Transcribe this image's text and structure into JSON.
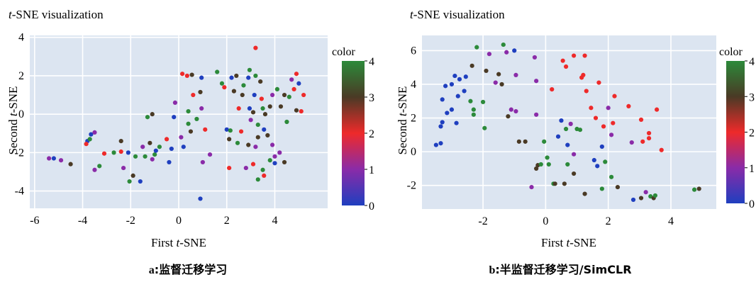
{
  "chart_data": [
    {
      "type": "scatter",
      "title": "t-SNE visualization",
      "title_italic": "t",
      "title_rest": "-SNE visualization",
      "xlabel": "First t-SNE",
      "xlabel_pre": "First ",
      "xlabel_italic": "t",
      "xlabel_post": "-SNE",
      "ylabel": "Second t-SNE",
      "ylabel_pre": "Second ",
      "ylabel_italic": "t",
      "ylabel_post": "-SNE",
      "xlim": [
        -6.2,
        6.2
      ],
      "ylim": [
        -4.9,
        4.1
      ],
      "xticks": [
        -6,
        -4,
        -2,
        0,
        2,
        4
      ],
      "yticks": [
        -4,
        -2,
        0,
        2,
        4
      ],
      "colorbar": {
        "label": "color",
        "ticks": [
          0,
          1,
          2,
          3,
          4
        ],
        "range": [
          0,
          4
        ]
      },
      "grid": true,
      "caption_letter": "a",
      "caption_text": ":监督迁移学习",
      "points": [
        {
          "x": -5.4,
          "y": -2.3,
          "c": 1
        },
        {
          "x": -5.2,
          "y": -2.3,
          "c": 0
        },
        {
          "x": -4.9,
          "y": -2.4,
          "c": 1
        },
        {
          "x": -4.5,
          "y": -2.6,
          "c": 3
        },
        {
          "x": -3.8,
          "y": -1.4,
          "c": 0
        },
        {
          "x": -3.7,
          "y": -1.3,
          "c": 4
        },
        {
          "x": -3.65,
          "y": -1.05,
          "c": 0
        },
        {
          "x": -3.5,
          "y": -0.95,
          "c": 1
        },
        {
          "x": -3.85,
          "y": -1.55,
          "c": 2
        },
        {
          "x": -3.5,
          "y": -2.9,
          "c": 1
        },
        {
          "x": -3.3,
          "y": -2.7,
          "c": 4
        },
        {
          "x": -3.1,
          "y": -2.05,
          "c": 2
        },
        {
          "x": -2.7,
          "y": -2.0,
          "c": 4
        },
        {
          "x": -2.4,
          "y": -1.95,
          "c": 2
        },
        {
          "x": -2.4,
          "y": -1.4,
          "c": 3
        },
        {
          "x": -2.3,
          "y": -2.8,
          "c": 1
        },
        {
          "x": -2.1,
          "y": -2.0,
          "c": 0
        },
        {
          "x": -2.05,
          "y": -3.5,
          "c": 4
        },
        {
          "x": -1.9,
          "y": -3.2,
          "c": 3
        },
        {
          "x": -1.8,
          "y": -2.2,
          "c": 4
        },
        {
          "x": -1.6,
          "y": -3.5,
          "c": 0
        },
        {
          "x": -1.5,
          "y": -1.7,
          "c": 1
        },
        {
          "x": -1.4,
          "y": -2.2,
          "c": 4
        },
        {
          "x": -1.3,
          "y": -0.15,
          "c": 4
        },
        {
          "x": -1.1,
          "y": 0.0,
          "c": 3
        },
        {
          "x": -1.2,
          "y": -1.5,
          "c": 3
        },
        {
          "x": -1.0,
          "y": -2.1,
          "c": 4
        },
        {
          "x": -0.95,
          "y": -1.9,
          "c": 0
        },
        {
          "x": -1.1,
          "y": -2.35,
          "c": 1
        },
        {
          "x": -0.8,
          "y": -1.7,
          "c": 4
        },
        {
          "x": -0.5,
          "y": -1.3,
          "c": 2
        },
        {
          "x": -0.3,
          "y": -1.8,
          "c": 0
        },
        {
          "x": -0.4,
          "y": -2.5,
          "c": 0
        },
        {
          "x": -0.2,
          "y": -0.15,
          "c": 0
        },
        {
          "x": -0.15,
          "y": 0.6,
          "c": 1
        },
        {
          "x": 0.1,
          "y": -1.2,
          "c": 1
        },
        {
          "x": 0.2,
          "y": -1.7,
          "c": 0
        },
        {
          "x": 0.15,
          "y": 2.1,
          "c": 2
        },
        {
          "x": 0.35,
          "y": 2.0,
          "c": 2
        },
        {
          "x": 0.4,
          "y": -0.5,
          "c": 4
        },
        {
          "x": 0.4,
          "y": 0.15,
          "c": 4
        },
        {
          "x": 0.5,
          "y": -0.9,
          "c": 3
        },
        {
          "x": 0.6,
          "y": 1.0,
          "c": 2
        },
        {
          "x": 0.55,
          "y": 2.05,
          "c": 3
        },
        {
          "x": 0.75,
          "y": -0.25,
          "c": 4
        },
        {
          "x": 0.9,
          "y": 1.15,
          "c": 3
        },
        {
          "x": 0.95,
          "y": 0.3,
          "c": 1
        },
        {
          "x": 0.95,
          "y": 1.9,
          "c": 0
        },
        {
          "x": 1.1,
          "y": -0.8,
          "c": 2
        },
        {
          "x": 1.3,
          "y": -2.1,
          "c": 1
        },
        {
          "x": 0.9,
          "y": -4.4,
          "c": 0
        },
        {
          "x": 1.0,
          "y": -2.5,
          "c": 1
        },
        {
          "x": 1.6,
          "y": 2.2,
          "c": 4
        },
        {
          "x": 1.8,
          "y": 1.6,
          "c": 4
        },
        {
          "x": 1.9,
          "y": 1.4,
          "c": 2
        },
        {
          "x": 2.0,
          "y": -0.8,
          "c": 0
        },
        {
          "x": 2.1,
          "y": -1.3,
          "c": 3
        },
        {
          "x": 2.1,
          "y": -2.8,
          "c": 2
        },
        {
          "x": 2.15,
          "y": -0.85,
          "c": 4
        },
        {
          "x": 2.2,
          "y": 1.9,
          "c": 0
        },
        {
          "x": 2.3,
          "y": 1.2,
          "c": 3
        },
        {
          "x": 2.4,
          "y": 2.0,
          "c": 3
        },
        {
          "x": 2.45,
          "y": -1.5,
          "c": 4
        },
        {
          "x": 2.5,
          "y": 0.3,
          "c": 2
        },
        {
          "x": 2.6,
          "y": -0.9,
          "c": 2
        },
        {
          "x": 2.65,
          "y": 1.0,
          "c": 3
        },
        {
          "x": 2.7,
          "y": 1.5,
          "c": 4
        },
        {
          "x": 2.8,
          "y": -2.8,
          "c": 1
        },
        {
          "x": 2.9,
          "y": -1.6,
          "c": 3
        },
        {
          "x": 2.9,
          "y": 1.9,
          "c": 0
        },
        {
          "x": 2.95,
          "y": 2.3,
          "c": 4
        },
        {
          "x": 2.95,
          "y": 0.3,
          "c": 0
        },
        {
          "x": 3.0,
          "y": -0.3,
          "c": 1
        },
        {
          "x": 3.1,
          "y": -2.6,
          "c": 2
        },
        {
          "x": 3.1,
          "y": 0.1,
          "c": 3
        },
        {
          "x": 3.15,
          "y": 1.0,
          "c": 0
        },
        {
          "x": 3.2,
          "y": 3.45,
          "c": 2
        },
        {
          "x": 3.2,
          "y": 2.0,
          "c": 4
        },
        {
          "x": 3.2,
          "y": -1.7,
          "c": 1
        },
        {
          "x": 3.3,
          "y": -0.55,
          "c": 4
        },
        {
          "x": 3.3,
          "y": -1.2,
          "c": 3
        },
        {
          "x": 3.3,
          "y": -3.4,
          "c": 4
        },
        {
          "x": 3.4,
          "y": 1.7,
          "c": 3
        },
        {
          "x": 3.45,
          "y": 0.8,
          "c": 2
        },
        {
          "x": 3.5,
          "y": -2.9,
          "c": 4
        },
        {
          "x": 3.5,
          "y": 0.3,
          "c": 4
        },
        {
          "x": 3.55,
          "y": -0.8,
          "c": 0
        },
        {
          "x": 3.6,
          "y": 0.0,
          "c": 3
        },
        {
          "x": 3.55,
          "y": -3.2,
          "c": 2
        },
        {
          "x": 3.7,
          "y": -1.1,
          "c": 3
        },
        {
          "x": 3.8,
          "y": 0.4,
          "c": 3
        },
        {
          "x": 3.8,
          "y": -2.4,
          "c": 4
        },
        {
          "x": 3.9,
          "y": 1.0,
          "c": 1
        },
        {
          "x": 3.9,
          "y": -1.6,
          "c": 1
        },
        {
          "x": 4.0,
          "y": -2.2,
          "c": 1
        },
        {
          "x": 4.0,
          "y": -2.55,
          "c": 0
        },
        {
          "x": 4.1,
          "y": 1.3,
          "c": 4
        },
        {
          "x": 4.2,
          "y": -2.0,
          "c": 1
        },
        {
          "x": 4.25,
          "y": 0.4,
          "c": 3
        },
        {
          "x": 4.4,
          "y": 1.0,
          "c": 3
        },
        {
          "x": 4.4,
          "y": -2.5,
          "c": 3
        },
        {
          "x": 4.5,
          "y": -0.4,
          "c": 4
        },
        {
          "x": 4.6,
          "y": 0.9,
          "c": 4
        },
        {
          "x": 4.7,
          "y": 1.8,
          "c": 1
        },
        {
          "x": 4.8,
          "y": 1.3,
          "c": 2
        },
        {
          "x": 4.9,
          "y": 2.1,
          "c": 2
        },
        {
          "x": 5.0,
          "y": 1.6,
          "c": 0
        },
        {
          "x": 4.9,
          "y": 0.2,
          "c": 3
        },
        {
          "x": 5.1,
          "y": 0.15,
          "c": 2
        },
        {
          "x": 5.2,
          "y": 1.0,
          "c": 2
        }
      ]
    },
    {
      "type": "scatter",
      "title": "t-SNE visualization",
      "title_italic": "t",
      "title_rest": "-SNE visualization",
      "xlabel": "First t-SNE",
      "xlabel_pre": "First ",
      "xlabel_italic": "t",
      "xlabel_post": "-SNE",
      "ylabel": "Second t-SNE",
      "ylabel_pre": "Second ",
      "ylabel_italic": "t",
      "ylabel_post": "-SNE",
      "xlim": [
        -3.95,
        5.45
      ],
      "ylim": [
        -3.4,
        6.9
      ],
      "xticks": [
        -2,
        0,
        2,
        4
      ],
      "yticks": [
        -2,
        0,
        2,
        4,
        6
      ],
      "colorbar": {
        "label": "color",
        "ticks": [
          0,
          1,
          2,
          3,
          4
        ],
        "range": [
          0,
          4
        ]
      },
      "grid": true,
      "caption_letter": "b",
      "caption_text": ":半监督迁移学习/SimCLR",
      "points": [
        {
          "x": -3.5,
          "y": 0.4,
          "c": 0
        },
        {
          "x": -3.35,
          "y": 0.5,
          "c": 0
        },
        {
          "x": -3.35,
          "y": 1.5,
          "c": 0
        },
        {
          "x": -3.3,
          "y": 1.75,
          "c": 0
        },
        {
          "x": -3.3,
          "y": 3.1,
          "c": 0
        },
        {
          "x": -3.15,
          "y": 2.3,
          "c": 0
        },
        {
          "x": -3.2,
          "y": 3.9,
          "c": 0
        },
        {
          "x": -3.0,
          "y": 2.5,
          "c": 0
        },
        {
          "x": -3.0,
          "y": 4.0,
          "c": 0
        },
        {
          "x": -2.9,
          "y": 4.5,
          "c": 0
        },
        {
          "x": -2.85,
          "y": 1.7,
          "c": 0
        },
        {
          "x": -2.8,
          "y": 3.3,
          "c": 0
        },
        {
          "x": -2.75,
          "y": 4.3,
          "c": 0
        },
        {
          "x": -2.6,
          "y": 3.6,
          "c": 0
        },
        {
          "x": -2.55,
          "y": 4.45,
          "c": 0
        },
        {
          "x": -2.4,
          "y": 3.0,
          "c": 4
        },
        {
          "x": -2.3,
          "y": 2.2,
          "c": 4
        },
        {
          "x": -2.3,
          "y": 2.5,
          "c": 4
        },
        {
          "x": -2.35,
          "y": 5.1,
          "c": 3
        },
        {
          "x": -2.2,
          "y": 6.2,
          "c": 4
        },
        {
          "x": -1.95,
          "y": 1.4,
          "c": 4
        },
        {
          "x": -2.0,
          "y": 2.95,
          "c": 4
        },
        {
          "x": -1.9,
          "y": 4.8,
          "c": 3
        },
        {
          "x": -1.8,
          "y": 5.8,
          "c": 1
        },
        {
          "x": -1.6,
          "y": 4.1,
          "c": 1
        },
        {
          "x": -1.5,
          "y": 4.6,
          "c": 3
        },
        {
          "x": -1.35,
          "y": 6.35,
          "c": 4
        },
        {
          "x": -1.4,
          "y": 4.0,
          "c": 3
        },
        {
          "x": -1.2,
          "y": 2.1,
          "c": 3
        },
        {
          "x": -1.25,
          "y": 5.9,
          "c": 1
        },
        {
          "x": -1.1,
          "y": 2.5,
          "c": 1
        },
        {
          "x": -1.0,
          "y": 6.0,
          "c": 0
        },
        {
          "x": -0.95,
          "y": 2.4,
          "c": 1
        },
        {
          "x": -0.95,
          "y": 4.55,
          "c": 1
        },
        {
          "x": -0.85,
          "y": 0.6,
          "c": 3
        },
        {
          "x": -0.65,
          "y": 0.6,
          "c": 3
        },
        {
          "x": -0.45,
          "y": -2.1,
          "c": 1
        },
        {
          "x": -0.35,
          "y": 5.6,
          "c": 1
        },
        {
          "x": -0.3,
          "y": 4.2,
          "c": 1
        },
        {
          "x": -0.3,
          "y": 2.2,
          "c": 1
        },
        {
          "x": -0.25,
          "y": -0.8,
          "c": 3
        },
        {
          "x": -0.3,
          "y": -1.0,
          "c": 3
        },
        {
          "x": -0.15,
          "y": -0.75,
          "c": 4
        },
        {
          "x": -0.05,
          "y": 0.6,
          "c": 4
        },
        {
          "x": 0.05,
          "y": -0.35,
          "c": 4
        },
        {
          "x": 0.1,
          "y": -0.75,
          "c": 4
        },
        {
          "x": 0.2,
          "y": 3.7,
          "c": 2
        },
        {
          "x": 0.25,
          "y": -1.9,
          "c": 4
        },
        {
          "x": 0.3,
          "y": -1.9,
          "c": 3
        },
        {
          "x": 0.4,
          "y": 0.9,
          "c": 0
        },
        {
          "x": 0.5,
          "y": 1.85,
          "c": 0
        },
        {
          "x": 0.55,
          "y": 5.4,
          "c": 2
        },
        {
          "x": 0.6,
          "y": -1.9,
          "c": 3
        },
        {
          "x": 0.65,
          "y": 5.05,
          "c": 2
        },
        {
          "x": 0.65,
          "y": 1.35,
          "c": 4
        },
        {
          "x": 0.7,
          "y": 0.4,
          "c": 0
        },
        {
          "x": 0.7,
          "y": -0.75,
          "c": 4
        },
        {
          "x": 0.8,
          "y": 1.65,
          "c": 1
        },
        {
          "x": 0.9,
          "y": 5.7,
          "c": 2
        },
        {
          "x": 0.9,
          "y": -0.15,
          "c": 1
        },
        {
          "x": 0.9,
          "y": -1.3,
          "c": 3
        },
        {
          "x": 1.0,
          "y": 1.35,
          "c": 4
        },
        {
          "x": 1.1,
          "y": 1.3,
          "c": 4
        },
        {
          "x": 1.15,
          "y": 4.4,
          "c": 2
        },
        {
          "x": 1.2,
          "y": 4.55,
          "c": 2
        },
        {
          "x": 1.25,
          "y": 5.7,
          "c": 2
        },
        {
          "x": 1.3,
          "y": 3.6,
          "c": 2
        },
        {
          "x": 1.25,
          "y": -2.5,
          "c": 3
        },
        {
          "x": 1.45,
          "y": 2.6,
          "c": 2
        },
        {
          "x": 1.55,
          "y": -0.5,
          "c": 0
        },
        {
          "x": 1.6,
          "y": 2.0,
          "c": 2
        },
        {
          "x": 1.65,
          "y": -0.85,
          "c": 0
        },
        {
          "x": 1.7,
          "y": 4.1,
          "c": 2
        },
        {
          "x": 1.8,
          "y": -2.2,
          "c": 4
        },
        {
          "x": 1.8,
          "y": 0.3,
          "c": 0
        },
        {
          "x": 1.85,
          "y": 1.5,
          "c": 2
        },
        {
          "x": 1.9,
          "y": -0.6,
          "c": 4
        },
        {
          "x": 2.0,
          "y": 2.6,
          "c": 1
        },
        {
          "x": 2.1,
          "y": 1.0,
          "c": 1
        },
        {
          "x": 2.1,
          "y": -1.5,
          "c": 4
        },
        {
          "x": 2.15,
          "y": 1.7,
          "c": 2
        },
        {
          "x": 2.2,
          "y": 3.3,
          "c": 2
        },
        {
          "x": 2.3,
          "y": -2.1,
          "c": 3
        },
        {
          "x": 2.65,
          "y": 2.7,
          "c": 2
        },
        {
          "x": 2.75,
          "y": 0.55,
          "c": 1
        },
        {
          "x": 2.8,
          "y": -2.85,
          "c": 0
        },
        {
          "x": 3.05,
          "y": -2.75,
          "c": 3
        },
        {
          "x": 3.05,
          "y": 1.9,
          "c": 2
        },
        {
          "x": 3.1,
          "y": 0.6,
          "c": 2
        },
        {
          "x": 3.2,
          "y": -2.4,
          "c": 1
        },
        {
          "x": 3.3,
          "y": 0.8,
          "c": 2
        },
        {
          "x": 3.3,
          "y": 1.1,
          "c": 2
        },
        {
          "x": 3.35,
          "y": -2.65,
          "c": 4
        },
        {
          "x": 3.45,
          "y": -2.75,
          "c": 3
        },
        {
          "x": 3.5,
          "y": -2.6,
          "c": 4
        },
        {
          "x": 3.55,
          "y": 2.5,
          "c": 2
        },
        {
          "x": 3.7,
          "y": 0.1,
          "c": 2
        },
        {
          "x": 4.75,
          "y": -2.25,
          "c": 4
        },
        {
          "x": 4.9,
          "y": -2.2,
          "c": 3
        }
      ]
    }
  ]
}
